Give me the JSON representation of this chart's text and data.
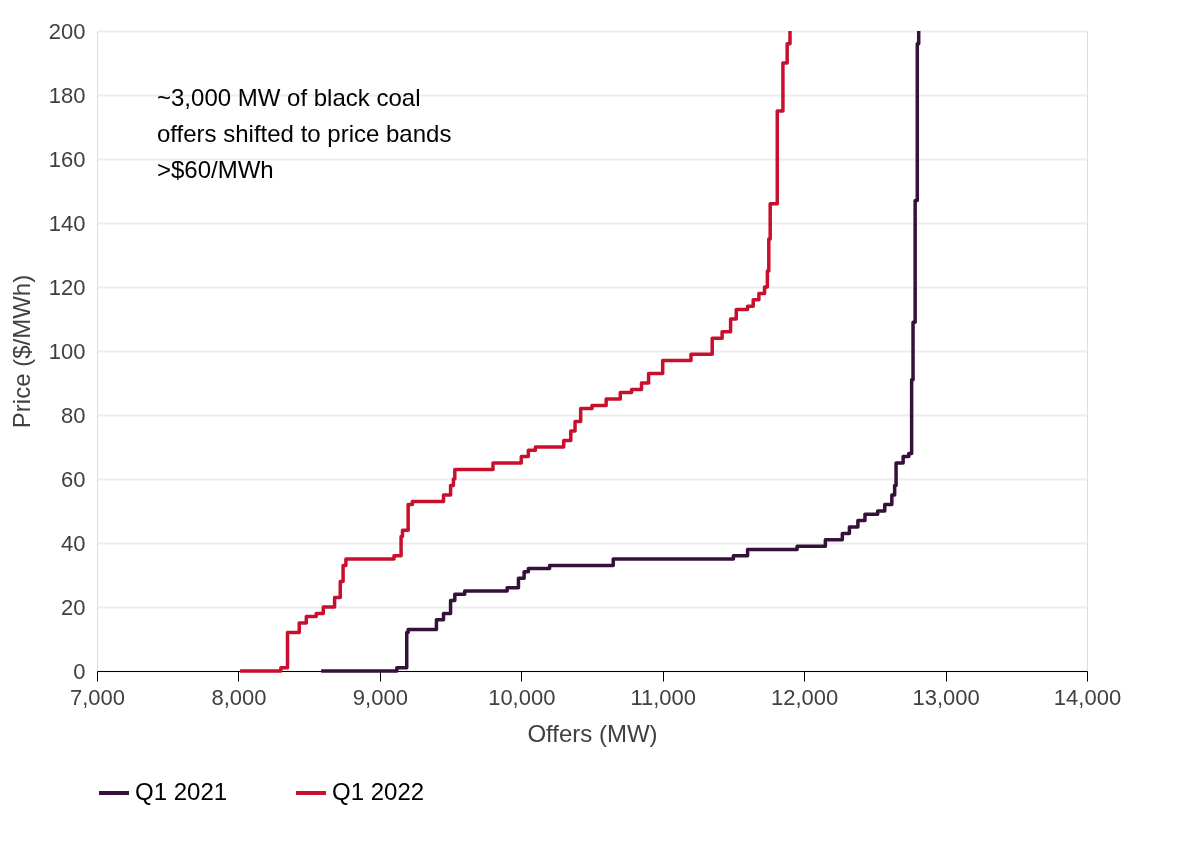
{
  "chart_data": {
    "type": "step",
    "xlabel": "Offers (MW)",
    "ylabel": "Price ($/MWh)",
    "xlim": [
      7000,
      14000
    ],
    "xticks": [
      {
        "value": 7000,
        "label": "7,000"
      },
      {
        "value": 8000,
        "label": "8,000"
      },
      {
        "value": 9000,
        "label": "9,000"
      },
      {
        "value": 10000,
        "label": "10,000"
      },
      {
        "value": 11000,
        "label": "11,000"
      },
      {
        "value": 12000,
        "label": "12,000"
      },
      {
        "value": 13000,
        "label": "13,000"
      },
      {
        "value": 14000,
        "label": "14,000"
      }
    ],
    "ylim": [
      0,
      200
    ],
    "yticks": [
      0,
      20,
      40,
      60,
      80,
      100,
      120,
      140,
      160,
      180,
      200
    ],
    "grid": "y",
    "legend": "bottom",
    "line_style": "solid",
    "marker": "none",
    "annotations": [
      "~3,000 MW of black coal offers shifted to price bands >$60/MWh"
    ],
    "series": [
      {
        "name": "Q1 2021",
        "color": "#35103a",
        "x": [
          8585,
          9120,
          9190,
          9200,
          9400,
          9450,
          9500,
          9530,
          9600,
          9900,
          9980,
          10020,
          10050,
          10200,
          10650,
          11500,
          11600,
          11950,
          12150,
          12270,
          12320,
          12380,
          12430,
          12520,
          12570,
          12620,
          12640,
          12650,
          12700,
          12740,
          12760,
          12770,
          12785,
          12800,
          12810
        ],
        "values": [
          0,
          1,
          12,
          13,
          16,
          18,
          22,
          24,
          25,
          26,
          29,
          31,
          32,
          33,
          35,
          36,
          38,
          39,
          41,
          43,
          45,
          47,
          49,
          50,
          52,
          55,
          58,
          65,
          67,
          68,
          91,
          109,
          147,
          196,
          200
        ]
      },
      {
        "name": "Q1 2022",
        "color": "#c8102e",
        "x": [
          8012,
          8300,
          8347,
          8430,
          8480,
          8550,
          8600,
          8680,
          8720,
          8740,
          8760,
          9100,
          9150,
          9160,
          9200,
          9230,
          9450,
          9500,
          9520,
          9530,
          9800,
          10000,
          10050,
          10100,
          10300,
          10350,
          10380,
          10420,
          10500,
          10600,
          10700,
          10780,
          10850,
          10900,
          11000,
          11200,
          11350,
          11420,
          11480,
          11520,
          11600,
          11640,
          11680,
          11720,
          11740,
          11750,
          11760,
          11810,
          11850,
          11880,
          11900
        ],
        "values": [
          0,
          1,
          12,
          15,
          17,
          18,
          20,
          23,
          28,
          33,
          35,
          36,
          42,
          44,
          52,
          53,
          55,
          58,
          60,
          63,
          65,
          67,
          69,
          70,
          72,
          75,
          78,
          82,
          83,
          85,
          87,
          88,
          90,
          93,
          97,
          99,
          104,
          106,
          110,
          113,
          114,
          116,
          118,
          120,
          125,
          135,
          146,
          175,
          190,
          196,
          200
        ]
      }
    ]
  }
}
